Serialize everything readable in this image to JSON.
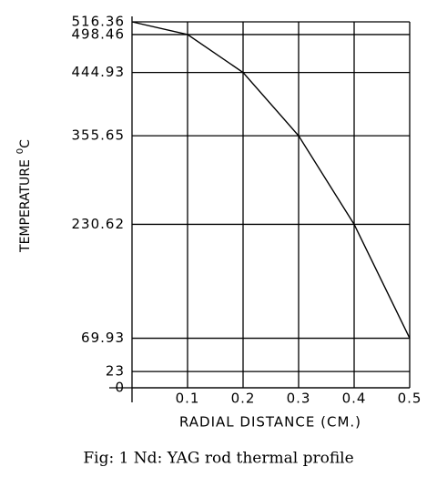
{
  "chart_data": {
    "type": "line",
    "x": [
      0,
      0.1,
      0.2,
      0.3,
      0.4,
      0.5
    ],
    "values": [
      516.36,
      498.46,
      444.93,
      355.65,
      230.62,
      69.93
    ],
    "color": "#000000",
    "xlim": [
      0,
      0.5
    ],
    "xticks": [
      0.1,
      0.2,
      0.3,
      0.4,
      0.5
    ],
    "ylim": [
      0,
      516.36
    ],
    "yticks": [
      0,
      23,
      69.93,
      230.62,
      355.65,
      444.93,
      498.46,
      516.36
    ],
    "grid": true,
    "x_label": "RADIAL DISTANCE (CM.)",
    "y_label": {
      "text": "TEMPERATURE",
      "superscript": "0",
      "unit": "C"
    },
    "caption": "Fig: 1 Nd: YAG rod thermal profile"
  }
}
